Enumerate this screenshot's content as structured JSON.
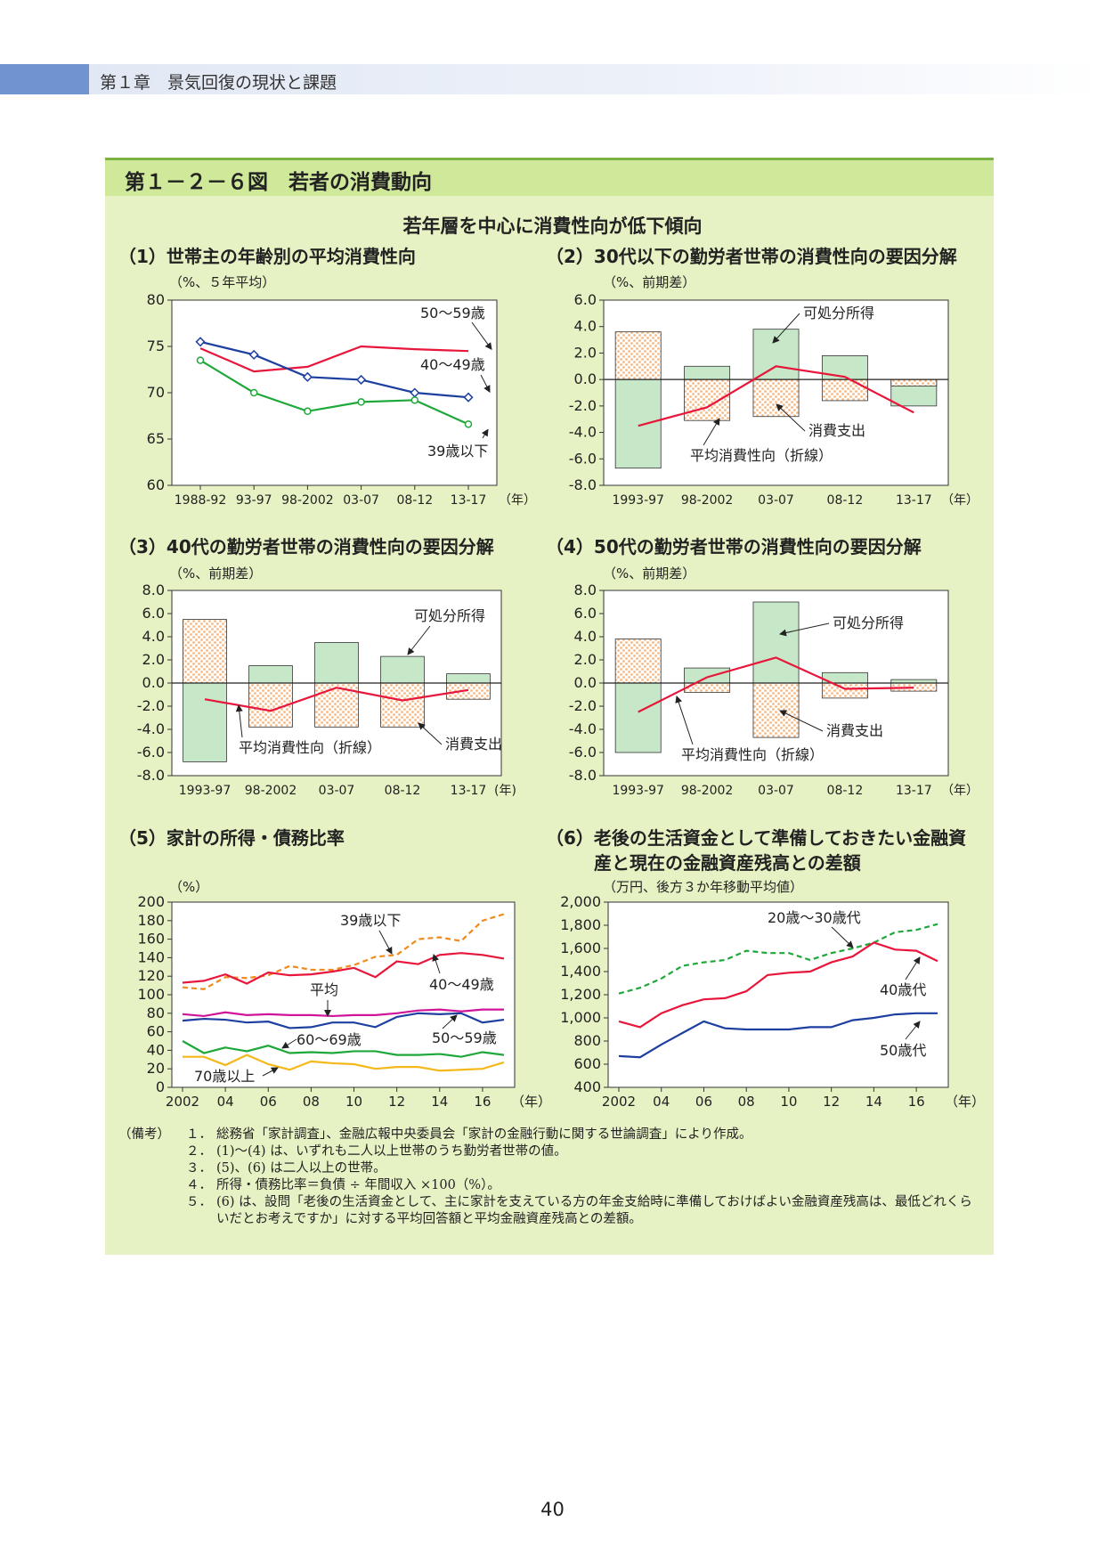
{
  "header": {
    "chapter": "第１章　景気回復の現状と課題"
  },
  "figure": {
    "title": "第１－２－６図　若者の消費動向",
    "subtitle": "若年層を中心に消費性向が低下傾向"
  },
  "colors": {
    "green_fill": "#c6e8c9",
    "orange_fill": "#f6b985",
    "red_line": "#e8163b",
    "blue_line": "#1d3fa0",
    "green_line": "#1ea83a",
    "orange_line": "#f08a1a",
    "magenta_line": "#d0149a",
    "yellow_line": "#f4b81a",
    "bg": "#e6f2c4"
  },
  "panels": [
    {
      "title": "（1）世帯主の年齢別の平均消費性向",
      "unit": "（%、５年平均）"
    },
    {
      "title": "（2）30代以下の勤労者世帯の消費性向の要因分解",
      "unit": "（%、前期差）"
    },
    {
      "title": "（3）40代の勤労者世帯の消費性向の要因分解",
      "unit": "（%、前期差）"
    },
    {
      "title": "（4）50代の勤労者世帯の消費性向の要因分解",
      "unit": "（%、前期差）"
    },
    {
      "title": "（5）家計の所得・債務比率",
      "unit": "（%）"
    },
    {
      "title": "（6）老後の生活資金として準備しておきたい金融資",
      "title2": "産と現在の金融資産残高との差額",
      "unit": "（万円、後方３か年移動平均値）"
    }
  ],
  "chart_data": [
    {
      "type": "line",
      "title": "（1）世帯主の年齢別の平均消費性向",
      "ylabel": "（%、５年平均）",
      "ylim": [
        60,
        80
      ],
      "yticks": [
        60,
        65,
        70,
        75,
        80
      ],
      "categories": [
        "1988-92",
        "93-97",
        "98-2002",
        "03-07",
        "08-12",
        "13-17"
      ],
      "xunit": "（年）",
      "series": [
        {
          "name": "50～59歳",
          "color": "#e8163b",
          "marker": "none",
          "values": [
            74.8,
            72.3,
            72.8,
            75.0,
            74.7,
            74.5
          ]
        },
        {
          "name": "40～49歳",
          "color": "#1d3fa0",
          "marker": "diamond",
          "values": [
            75.5,
            74.1,
            71.7,
            71.4,
            70.0,
            69.5
          ]
        },
        {
          "name": "39歳以下",
          "color": "#1ea83a",
          "marker": "circle",
          "values": [
            73.5,
            70.0,
            68.0,
            69.0,
            69.2,
            66.6
          ]
        }
      ]
    },
    {
      "type": "bar",
      "title": "（2）30代以下の勤労者世帯の消費性向の要因分解",
      "ylabel": "（%、前期差）",
      "ylim": [
        -8,
        6
      ],
      "yticks": [
        -8,
        -6,
        -4,
        -2,
        0,
        2,
        4,
        6
      ],
      "categories": [
        "1993-97",
        "98-2002",
        "03-07",
        "08-12",
        "13-17"
      ],
      "xunit": "（年）",
      "series": [
        {
          "name": "可処分所得",
          "values": [
            -6.7,
            1.0,
            3.8,
            1.8,
            -2.0
          ]
        },
        {
          "name": "消費支出",
          "values": [
            3.6,
            -3.1,
            -2.8,
            -1.6,
            -0.5
          ]
        },
        {
          "name": "平均消費性向（折線）",
          "values": [
            -3.5,
            -2.1,
            1.0,
            0.2,
            -2.5
          ]
        }
      ],
      "annotations": [
        "可処分所得",
        "消費支出",
        "平均消費性向（折線）"
      ]
    },
    {
      "type": "bar",
      "title": "（3）40代の勤労者世帯の消費性向の要因分解",
      "ylabel": "（%、前期差）",
      "ylim": [
        -8,
        8
      ],
      "yticks": [
        -8,
        -6,
        -4,
        -2,
        0,
        2,
        4,
        6,
        8
      ],
      "categories": [
        "1993-97",
        "98-2002",
        "03-07",
        "08-12",
        "13-17"
      ],
      "xunit": "(年)",
      "series": [
        {
          "name": "可処分所得",
          "values": [
            -6.8,
            1.5,
            3.5,
            2.3,
            0.8
          ]
        },
        {
          "name": "消費支出",
          "values": [
            5.5,
            -3.8,
            -3.8,
            -3.8,
            -1.4
          ]
        },
        {
          "name": "平均消費性向（折線）",
          "values": [
            -1.4,
            -2.4,
            -0.4,
            -1.5,
            -0.6
          ]
        }
      ],
      "annotations": [
        "可処分所得",
        "消費支出",
        "平均消費性向（折線）"
      ]
    },
    {
      "type": "bar",
      "title": "（4）50代の勤労者世帯の消費性向の要因分解",
      "ylabel": "（%、前期差）",
      "ylim": [
        -8,
        8
      ],
      "yticks": [
        -8,
        -6,
        -4,
        -2,
        0,
        2,
        4,
        6,
        8
      ],
      "categories": [
        "1993-97",
        "98-2002",
        "03-07",
        "08-12",
        "13-17"
      ],
      "xunit": "（年）",
      "series": [
        {
          "name": "可処分所得",
          "values": [
            -6.0,
            1.3,
            7.0,
            0.9,
            0.3
          ]
        },
        {
          "name": "消費支出",
          "values": [
            3.8,
            -0.8,
            -4.7,
            -1.3,
            -0.7
          ]
        },
        {
          "name": "平均消費性向（折線）",
          "values": [
            -2.5,
            0.5,
            2.2,
            -0.5,
            -0.4
          ]
        }
      ],
      "annotations": [
        "可処分所得",
        "消費支出",
        "平均消費性向（折線）"
      ]
    },
    {
      "type": "line",
      "title": "（5）家計の所得・債務比率",
      "ylabel": "（%）",
      "ylim": [
        0,
        200
      ],
      "yticks": [
        0,
        20,
        40,
        60,
        80,
        100,
        120,
        140,
        160,
        180,
        200
      ],
      "x": [
        2002,
        2003,
        2004,
        2005,
        2006,
        2007,
        2008,
        2009,
        2010,
        2011,
        2012,
        2013,
        2014,
        2015,
        2016,
        2017
      ],
      "xticklabels": [
        "2002",
        "04",
        "06",
        "08",
        "10",
        "12",
        "14",
        "16"
      ],
      "xunit": "（年）",
      "series": [
        {
          "name": "39歳以下",
          "color": "#f08a1a",
          "dash": true,
          "values": [
            108,
            106,
            119,
            118,
            121,
            131,
            127,
            127,
            132,
            141,
            143,
            160,
            162,
            158,
            180,
            187
          ]
        },
        {
          "name": "40～49歳",
          "color": "#e8163b",
          "values": [
            113,
            115,
            122,
            112,
            124,
            121,
            122,
            125,
            129,
            119,
            136,
            133,
            143,
            145,
            143,
            139
          ]
        },
        {
          "name": "平均",
          "color": "#d0149a",
          "values": [
            79,
            77,
            81,
            78,
            79,
            78,
            78,
            77,
            78,
            78,
            80,
            83,
            84,
            82,
            84,
            84
          ]
        },
        {
          "name": "50～59歳",
          "color": "#1d3fa0",
          "values": [
            72,
            74,
            73,
            70,
            71,
            64,
            65,
            70,
            70,
            65,
            76,
            80,
            79,
            80,
            70,
            73
          ]
        },
        {
          "name": "60～69歳",
          "color": "#1ea83a",
          "values": [
            50,
            37,
            43,
            39,
            45,
            37,
            38,
            37,
            39,
            39,
            35,
            35,
            36,
            33,
            38,
            35
          ]
        },
        {
          "name": "70歳以上",
          "color": "#f4b81a",
          "values": [
            33,
            33,
            24,
            35,
            25,
            19,
            28,
            26,
            25,
            20,
            22,
            22,
            18,
            19,
            20,
            27
          ]
        }
      ]
    },
    {
      "type": "line",
      "title": "（6）老後の生活資金として準備しておきたい金融資産と現在の金融資産残高との差額",
      "ylabel": "（万円、後方３か年移動平均値）",
      "ylim": [
        400,
        2000
      ],
      "yticks": [
        400,
        600,
        800,
        1000,
        1200,
        1400,
        1600,
        1800,
        2000
      ],
      "yticklabels": [
        "400",
        "600",
        "800",
        "1,000",
        "1,200",
        "1,400",
        "1,600",
        "1,800",
        "2,000"
      ],
      "x": [
        2002,
        2003,
        2004,
        2005,
        2006,
        2007,
        2008,
        2009,
        2010,
        2011,
        2012,
        2013,
        2014,
        2015,
        2016,
        2017
      ],
      "xticklabels": [
        "2002",
        "04",
        "06",
        "08",
        "10",
        "12",
        "14",
        "16"
      ],
      "xunit": "（年）",
      "series": [
        {
          "name": "20歳～30歳代",
          "color": "#1ea83a",
          "dash": true,
          "values": [
            1210,
            1260,
            1340,
            1450,
            1480,
            1500,
            1580,
            1560,
            1560,
            1500,
            1560,
            1600,
            1650,
            1740,
            1760,
            1810
          ]
        },
        {
          "name": "40歳代",
          "color": "#e8163b",
          "values": [
            970,
            920,
            1040,
            1110,
            1160,
            1170,
            1230,
            1370,
            1390,
            1400,
            1480,
            1530,
            1650,
            1590,
            1580,
            1490
          ]
        },
        {
          "name": "50歳代",
          "color": "#1d3fa0",
          "values": [
            670,
            660,
            770,
            870,
            970,
            910,
            900,
            900,
            900,
            920,
            920,
            980,
            1000,
            1030,
            1040,
            1040
          ]
        }
      ]
    }
  ],
  "notes": {
    "head": "（備考）",
    "items": [
      {
        "num": "１．",
        "text": "総務省「家計調査」、金融広報中央委員会「家計の金融行動に関する世論調査」により作成。"
      },
      {
        "num": "２．",
        "text": "(1)～(4) は、いずれも二人以上世帯のうち勤労者世帯の値。"
      },
      {
        "num": "３．",
        "text": "(5)、(6) は二人以上の世帯。"
      },
      {
        "num": "４．",
        "text": "所得・債務比率＝負債 ÷ 年間収入 ×100（%）。"
      },
      {
        "num": "５．",
        "text": "(6) は、設問「老後の生活資金として、主に家計を支えている方の年金支給時に準備しておけばよい金融資産残高は、最低どれくらいだとお考えですか」に対する平均回答額と平均金融資産残高との差額。"
      }
    ]
  },
  "page": {
    "number": "40"
  }
}
